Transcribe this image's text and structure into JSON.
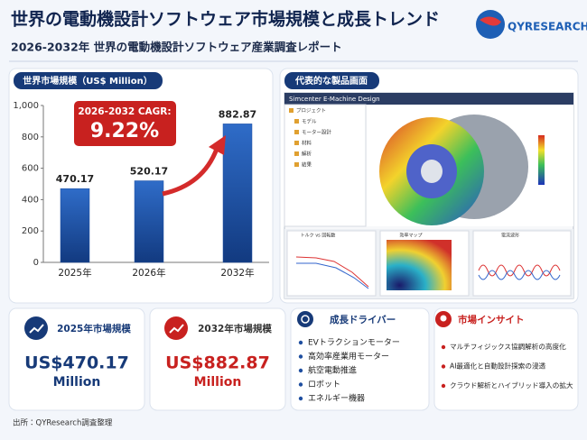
{
  "header": {
    "title": "世界の電動機設計ソフトウェア市場規模と成長トレンド",
    "subtitle": "2026-2032年 世界の電動機設計ソフトウェア産業調査レポート",
    "logo": "QYRESEARCH"
  },
  "market_panel": {
    "title": "世界市場規模（US$ Million）"
  },
  "chart_data": {
    "type": "bar",
    "categories": [
      "2025年",
      "2026年",
      "2032年"
    ],
    "values": [
      470.17,
      520.17,
      882.87
    ],
    "color": "#1f4fa0",
    "ylim": [
      0,
      1000
    ],
    "yticks": [
      0,
      200,
      400,
      600,
      800,
      {
        "value": 1000,
        "label": "1,000"
      }
    ],
    "grid": false
  },
  "cagr": {
    "label": "2026-2032 CAGR:",
    "value": "9.22%"
  },
  "product_panel": {
    "title": "代表的な製品画面",
    "window_title": "Simcenter E-Machine Design",
    "tree": [
      "プロジェクト",
      "モデル",
      "モーター設計",
      "材料",
      "解析",
      "結果"
    ],
    "plots": [
      "トルク vs 回転数",
      "効率マップ",
      "電流波形"
    ]
  },
  "cards": [
    {
      "title": "2025年市場規模",
      "value": "US$470.17",
      "unit": "Million"
    },
    {
      "title": "2032年市場規模",
      "value": "US$882.87",
      "unit": "Million"
    }
  ],
  "drivers": {
    "title": "成長ドライバー",
    "items": [
      "EVトラクションモーター",
      "高効率産業用モーター",
      "航空電動推進",
      "ロボット",
      "エネルギー機器"
    ]
  },
  "insights": {
    "title": "市場インサイト",
    "items": [
      "マルチフィジックス協調解析の高度化",
      "AI最適化と自動設計探索の浸透",
      "クラウド解析とハイブリッド導入の拡大"
    ]
  },
  "source": "出所：QYResearch調査整理"
}
